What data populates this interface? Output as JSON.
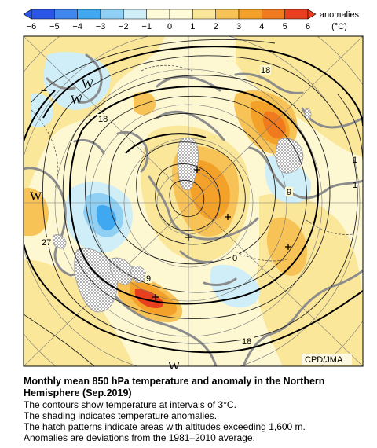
{
  "legend": {
    "label_line1": "anomalies",
    "label_line2": "(°C)",
    "ticks": [
      "−6",
      "−5",
      "−4",
      "−3",
      "−2",
      "−1",
      "0",
      "1",
      "2",
      "3",
      "4",
      "5",
      "6"
    ],
    "colors": [
      "#2a55e6",
      "#3f86ee",
      "#3fa8f0",
      "#8fd0f4",
      "#cfeef8",
      "#fffbd8",
      "#fffbd8",
      "#fbe79a",
      "#f8c356",
      "#f4a12a",
      "#f17a1f",
      "#e8401f"
    ]
  },
  "map": {
    "contour_labels": [
      "18",
      "18",
      "9",
      "9",
      "0",
      "18",
      "27",
      "1",
      "1"
    ],
    "high_symbols": [
      "W",
      "W",
      "W",
      "W"
    ],
    "low_symbols": [
      "−"
    ],
    "credit": "CPD/JMA"
  },
  "caption": {
    "title_line1": "Monthly mean 850 hPa temperature and anomaly in the Northern",
    "title_line2": "Hemisphere (Sep.2019)",
    "line1": "The contours show temperature at intervals of 3°C.",
    "line2": "The shading indicates temperature anomalies.",
    "line3": "The hatch patterns indicate areas with altitudes exceeding 1,600 m.",
    "line4": "Anomalies are deviations from the 1981–2010 average."
  }
}
